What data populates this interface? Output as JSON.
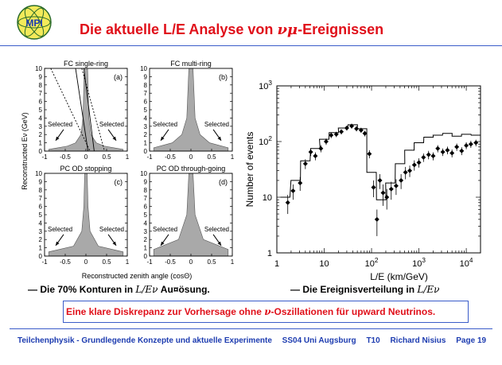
{
  "slide": {
    "logo_text": "MPI",
    "title_prefix": "Die aktuelle L/E Analyse von ",
    "title_symbol": "νμ",
    "title_suffix": "-Ereignissen",
    "bullet_left_prefix": "— Die 70% Konturen in ",
    "bullet_left_symbol": "L/Eν",
    "bullet_left_suffix": " Au¤ösung.",
    "bullet_right_prefix": "— Die Ereignisverteilung in ",
    "bullet_right_symbol": "L/Eν",
    "conclusion_prefix": "Eine klare Diskrepanz zur Vorhersage ohne ",
    "conclusion_symbol": "ν",
    "conclusion_suffix": "-Oszillationen für upward Neutrinos.",
    "footer": {
      "course": "Teilchenphysik - Grundlegende Konzepte und aktuelle Experimente",
      "semester": "SS04 Uni Augsburg",
      "code": "T10",
      "author": "Richard Nisius",
      "page": "Page 19"
    }
  },
  "chart_data": [
    {
      "type": "area",
      "title": "FC single-ring",
      "panel_label": "(a)",
      "xlabel": "Reconstructed zenith angle (cosΘ)",
      "ylabel": "Reconstructed Eν (GeV)",
      "xlim": [
        -1,
        1
      ],
      "ylim": [
        0,
        10
      ],
      "xticks": [
        "-1",
        "-0.5",
        "0",
        "0.5",
        "1"
      ],
      "yticks": [
        "0",
        "1",
        "2",
        "3",
        "4",
        "5",
        "6",
        "7",
        "8",
        "9",
        "10"
      ],
      "annotations": [
        "Selected",
        "Selected"
      ],
      "contour_halfwidth": [
        {
          "E": 0.2,
          "x": 0.9
        },
        {
          "E": 0.6,
          "x": 0.45
        },
        {
          "E": 1.0,
          "x": 0.25
        },
        {
          "E": 2.0,
          "x": 0.12
        },
        {
          "E": 4.0,
          "x": 0.07
        },
        {
          "E": 10.0,
          "x": 0.04
        }
      ],
      "cut_lines": [
        {
          "style": "solid",
          "points": [
            [
              -0.25,
              10
            ],
            [
              0.05,
              0
            ]
          ]
        },
        {
          "style": "solid",
          "points": [
            [
              -0.05,
              10
            ],
            [
              0.2,
              0
            ]
          ]
        },
        {
          "style": "dashed",
          "points": [
            [
              -0.85,
              10
            ],
            [
              0.1,
              0
            ]
          ]
        },
        {
          "style": "dashed",
          "points": [
            [
              -0.1,
              10
            ],
            [
              0.45,
              0
            ]
          ]
        }
      ]
    },
    {
      "type": "area",
      "title": "FC multi-ring",
      "panel_label": "(b)",
      "xlim": [
        -1,
        1
      ],
      "ylim": [
        0,
        10
      ],
      "xticks": [
        "-1",
        "-0.5",
        "0",
        "0.5",
        "1"
      ],
      "yticks": [
        "0",
        "1",
        "2",
        "3",
        "4",
        "5",
        "6",
        "7",
        "8",
        "9",
        "10"
      ],
      "annotations": [
        "Selected",
        "Selected"
      ],
      "contour_halfwidth": [
        {
          "E": 0.4,
          "x": 0.9
        },
        {
          "E": 1.0,
          "x": 0.45
        },
        {
          "E": 2.0,
          "x": 0.22
        },
        {
          "E": 4.0,
          "x": 0.1
        },
        {
          "E": 10.0,
          "x": 0.05
        }
      ]
    },
    {
      "type": "area",
      "title": "PC OD stopping",
      "panel_label": "(c)",
      "xlim": [
        -1,
        1
      ],
      "ylim": [
        0,
        10
      ],
      "xticks": [
        "-1",
        "-0.5",
        "0",
        "0.5",
        "1"
      ],
      "yticks": [
        "0",
        "1",
        "2",
        "3",
        "4",
        "5",
        "6",
        "7",
        "8",
        "9",
        "10"
      ],
      "annotations": [
        "Selected",
        "Selected"
      ],
      "contour_halfwidth": [
        {
          "E": 0.5,
          "x": 0.9
        },
        {
          "E": 1.2,
          "x": 0.3
        },
        {
          "E": 3.0,
          "x": 0.1
        },
        {
          "E": 6.0,
          "x": 0.05
        },
        {
          "E": 10.0,
          "x": 0.03
        }
      ]
    },
    {
      "type": "area",
      "title": "PC OD through-going",
      "panel_label": "(d)",
      "xlim": [
        -1,
        1
      ],
      "ylim": [
        0,
        10
      ],
      "xticks": [
        "-1",
        "-0.5",
        "0",
        "0.5",
        "1"
      ],
      "yticks": [
        "0",
        "1",
        "2",
        "3",
        "4",
        "5",
        "6",
        "7",
        "8",
        "9",
        "10"
      ],
      "annotations": [
        "Selected",
        "Selected"
      ],
      "contour_halfwidth": [
        {
          "E": 0.8,
          "x": 0.9
        },
        {
          "E": 2.0,
          "x": 0.3
        },
        {
          "E": 5.0,
          "x": 0.1
        },
        {
          "E": 10.0,
          "x": 0.05
        }
      ]
    },
    {
      "type": "line",
      "xlabel": "L/E (km/GeV)",
      "ylabel": "Number of events",
      "x_scale": "log",
      "y_scale": "log",
      "xlim": [
        1,
        20000
      ],
      "ylim": [
        1,
        1000
      ],
      "xticks": [
        "1",
        "10",
        "10^2",
        "10^3",
        "10^4"
      ],
      "yticks": [
        "1",
        "10",
        "10^2",
        "10^3"
      ],
      "series": [
        {
          "style": "step",
          "x": [
            1.5,
            2.5,
            4,
            6.5,
            10,
            16,
            25,
            40,
            63,
            100,
            160,
            250,
            400,
            630,
            1000,
            1600,
            2500,
            4000,
            6300,
            10000,
            16000
          ],
          "y": [
            10,
            20,
            45,
            75,
            110,
            145,
            175,
            200,
            170,
            28,
            9,
            18,
            40,
            70,
            95,
            120,
            130,
            140,
            125,
            135,
            130
          ]
        },
        {
          "style": "points",
          "x": [
            1.7,
            2.2,
            3.1,
            4,
            5.2,
            6.5,
            8.5,
            11,
            14,
            18,
            23,
            30,
            38,
            48,
            60,
            72,
            90,
            110,
            130,
            150,
            175,
            210,
            260,
            330,
            420,
            520,
            640,
            800,
            1000,
            1250,
            1600,
            2000,
            2500,
            3200,
            4000,
            5000,
            6300,
            8000,
            10000,
            12500,
            16000
          ],
          "y": [
            8,
            13,
            18,
            40,
            65,
            55,
            75,
            100,
            130,
            135,
            150,
            175,
            190,
            170,
            160,
            140,
            60,
            15,
            4,
            20,
            12,
            10,
            14,
            16,
            20,
            28,
            30,
            38,
            42,
            52,
            58,
            55,
            75,
            65,
            70,
            62,
            80,
            68,
            85,
            90,
            95
          ],
          "yerr": [
            3,
            4,
            5,
            8,
            10,
            9,
            11,
            13,
            15,
            15,
            16,
            18,
            19,
            18,
            17,
            16,
            10,
            5,
            2,
            6,
            5,
            4,
            5,
            5,
            6,
            7,
            7,
            8,
            8,
            9,
            10,
            9,
            11,
            10,
            11,
            10,
            12,
            11,
            12,
            13,
            13
          ]
        }
      ]
    }
  ]
}
